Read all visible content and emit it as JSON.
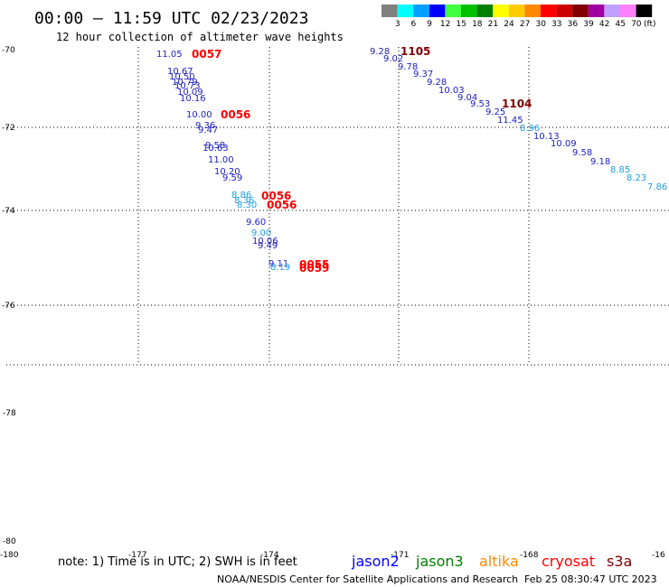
{
  "header": {
    "title": "00:00 – 11:59 UTC 02/23/2023",
    "subtitle": "12 hour collection of altimeter wave heights"
  },
  "color_scale": {
    "unit": "(ft)",
    "entries": [
      {
        "label": "3",
        "color": "#808080"
      },
      {
        "label": "6",
        "color": "#00ffff"
      },
      {
        "label": "9",
        "color": "#00a0ff"
      },
      {
        "label": "12",
        "color": "#0000ff"
      },
      {
        "label": "15",
        "color": "#40ff40"
      },
      {
        "label": "18",
        "color": "#00c000"
      },
      {
        "label": "21",
        "color": "#008000"
      },
      {
        "label": "24",
        "color": "#ffff00"
      },
      {
        "label": "27",
        "color": "#ffcc00"
      },
      {
        "label": "30",
        "color": "#ff8800"
      },
      {
        "label": "33",
        "color": "#ff0000"
      },
      {
        "label": "36",
        "color": "#cc0000"
      },
      {
        "label": "39",
        "color": "#800000"
      },
      {
        "label": "42",
        "color": "#a000a0"
      },
      {
        "label": "45",
        "color": "#c0a0ff"
      },
      {
        "label": "70",
        "color": "#ff80ff"
      },
      {
        "label": "",
        "color": "#000000"
      }
    ]
  },
  "axes": {
    "lat_labels": [
      "-70",
      "-72",
      "-74",
      "-76",
      "-78",
      "-80"
    ],
    "lon_labels": [
      "-180",
      "-177",
      "-174",
      "-171",
      "-168",
      "-16"
    ]
  },
  "wave_heights": [
    {
      "text": "11.05",
      "color": "#2020c0"
    },
    {
      "text": "10.67",
      "color": "#2020c0"
    },
    {
      "text": "10.50",
      "color": "#2020c0"
    },
    {
      "text": "10.79",
      "color": "#2020c0"
    },
    {
      "text": "10.73",
      "color": "#2020c0"
    },
    {
      "text": "10.09",
      "color": "#2020c0"
    },
    {
      "text": "10.16",
      "color": "#2020c0"
    },
    {
      "text": "10.00",
      "color": "#2020c0"
    },
    {
      "text": "9.36",
      "color": "#2020c0"
    },
    {
      "text": "9.47",
      "color": "#2020c0"
    },
    {
      "text": "9.58",
      "color": "#2020c0"
    },
    {
      "text": "10.63",
      "color": "#2020c0"
    },
    {
      "text": "11.00",
      "color": "#2020c0"
    },
    {
      "text": "10.20",
      "color": "#2020c0"
    },
    {
      "text": "9.59",
      "color": "#2020c0"
    },
    {
      "text": "8.86",
      "color": "#20a0e0"
    },
    {
      "text": "8.36",
      "color": "#20a0e0"
    },
    {
      "text": "8.30",
      "color": "#20a0e0"
    },
    {
      "text": "9.60",
      "color": "#2020c0"
    },
    {
      "text": "9.00",
      "color": "#20a0e0"
    },
    {
      "text": "10.06",
      "color": "#2020c0"
    },
    {
      "text": "9.49",
      "color": "#2020c0"
    },
    {
      "text": "9.11",
      "color": "#2020c0"
    },
    {
      "text": "8.19",
      "color": "#20a0e0"
    },
    {
      "text": "9.28",
      "color": "#2020c0"
    },
    {
      "text": "9.02",
      "color": "#2020c0"
    },
    {
      "text": "9.78",
      "color": "#2020c0"
    },
    {
      "text": "9.37",
      "color": "#2020c0"
    },
    {
      "text": "9.28",
      "color": "#2020c0"
    },
    {
      "text": "10.03",
      "color": "#2020c0"
    },
    {
      "text": "9.04",
      "color": "#2020c0"
    },
    {
      "text": "9.53",
      "color": "#2020c0"
    },
    {
      "text": "9.25",
      "color": "#2020c0"
    },
    {
      "text": "11.45",
      "color": "#2020c0"
    },
    {
      "text": "8.96",
      "color": "#20a0e0"
    },
    {
      "text": "10.13",
      "color": "#2020c0"
    },
    {
      "text": "10.09",
      "color": "#2020c0"
    },
    {
      "text": "9.58",
      "color": "#2020c0"
    },
    {
      "text": "9.18",
      "color": "#2020c0"
    },
    {
      "text": "8.85",
      "color": "#20a0e0"
    },
    {
      "text": "8.23",
      "color": "#20a0e0"
    },
    {
      "text": "7.86",
      "color": "#20a0e0"
    }
  ],
  "time_labels": [
    {
      "text": "0057",
      "color": "#ff0000"
    },
    {
      "text": "0056",
      "color": "#ff0000"
    },
    {
      "text": "0056",
      "color": "#ff0000"
    },
    {
      "text": "0056",
      "color": "#ff0000"
    },
    {
      "text": "0055",
      "color": "#ff0000"
    },
    {
      "text": "0059",
      "color": "#ff0000"
    },
    {
      "text": "1105",
      "color": "#800000"
    },
    {
      "text": "1104",
      "color": "#800000"
    }
  ],
  "footer": {
    "note": "note:  1) Time is in UTC;  2) SWH is in feet",
    "satellites": [
      {
        "name": "jason2",
        "color": "#0000ff"
      },
      {
        "name": "jason3",
        "color": "#008000"
      },
      {
        "name": "altika",
        "color": "#ff8800"
      },
      {
        "name": "cryosat",
        "color": "#ff0000"
      },
      {
        "name": "s3a",
        "color": "#800000"
      }
    ],
    "credit": "NOAA/NESDIS Center for Satellite Applications and Research",
    "timestamp": "Feb 25 08:30:47 UTC 2023"
  }
}
